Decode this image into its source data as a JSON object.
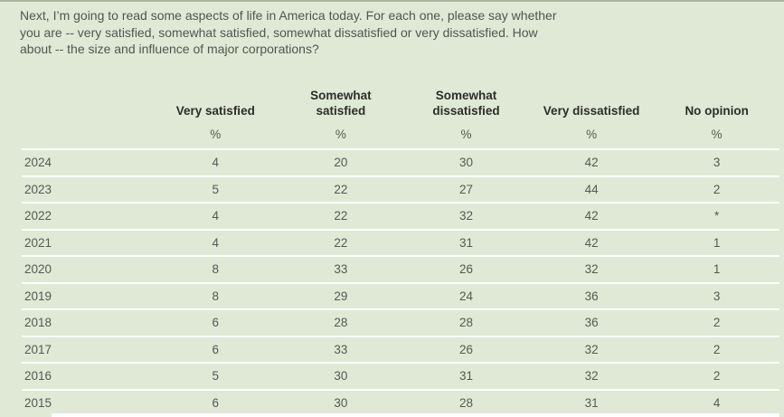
{
  "page": {
    "background_color": "#dfe9d6",
    "separator_color": "#ffffff",
    "top_edge_color": "#aab49e"
  },
  "question": {
    "line1": "Next, I’m going to read some aspects of life in America today. For each one, please say whether",
    "line2": "you are -- very satisfied, somewhat satisfied, somewhat dissatisfied or very dissatisfied. How",
    "line3": "about -- the size and influence of major corporations?"
  },
  "table": {
    "columns": [
      {
        "label": "Very satisfied",
        "line1": "",
        "line2": "Very satisfied",
        "unit": "%"
      },
      {
        "label": "Somewhat satisfied",
        "line1": "Somewhat",
        "line2": "satisfied",
        "unit": "%"
      },
      {
        "label": "Somewhat dissatisfied",
        "line1": "Somewhat",
        "line2": "dissatisfied",
        "unit": "%"
      },
      {
        "label": "Very dissatisfied",
        "line1": "",
        "line2": "Very dissatisfied",
        "unit": "%"
      },
      {
        "label": "No opinion",
        "line1": "",
        "line2": "No opinion",
        "unit": "%"
      }
    ],
    "rows": [
      {
        "year": "2024",
        "values": [
          "4",
          "20",
          "30",
          "42",
          "3"
        ]
      },
      {
        "year": "2023",
        "values": [
          "5",
          "22",
          "27",
          "44",
          "2"
        ]
      },
      {
        "year": "2022",
        "values": [
          "4",
          "22",
          "32",
          "42",
          "*"
        ]
      },
      {
        "year": "2021",
        "values": [
          "4",
          "22",
          "31",
          "42",
          "1"
        ]
      },
      {
        "year": "2020",
        "values": [
          "8",
          "33",
          "26",
          "32",
          "1"
        ]
      },
      {
        "year": "2019",
        "values": [
          "8",
          "29",
          "24",
          "36",
          "3"
        ]
      },
      {
        "year": "2018",
        "values": [
          "6",
          "28",
          "28",
          "36",
          "2"
        ]
      },
      {
        "year": "2017",
        "values": [
          "6",
          "33",
          "26",
          "32",
          "2"
        ]
      },
      {
        "year": "2016",
        "values": [
          "5",
          "30",
          "31",
          "32",
          "2"
        ]
      },
      {
        "year": "2015",
        "values": [
          "6",
          "30",
          "28",
          "31",
          "4"
        ]
      }
    ]
  },
  "chart_data": {
    "type": "table",
    "title": "Next, I’m going to read some aspects of life in America today. For each one, please say whether you are -- very satisfied, somewhat satisfied, somewhat dissatisfied or very dissatisfied. How about -- the size and influence of major corporations?",
    "unit": "%",
    "categories": [
      "2024",
      "2023",
      "2022",
      "2021",
      "2020",
      "2019",
      "2018",
      "2017",
      "2016",
      "2015"
    ],
    "series": [
      {
        "name": "Very satisfied",
        "values": [
          4,
          5,
          4,
          4,
          8,
          8,
          6,
          6,
          5,
          6
        ]
      },
      {
        "name": "Somewhat satisfied",
        "values": [
          20,
          22,
          22,
          22,
          33,
          29,
          28,
          33,
          30,
          30
        ]
      },
      {
        "name": "Somewhat dissatisfied",
        "values": [
          30,
          27,
          32,
          31,
          26,
          24,
          28,
          26,
          31,
          28
        ]
      },
      {
        "name": "Very dissatisfied",
        "values": [
          42,
          44,
          42,
          42,
          32,
          36,
          36,
          32,
          32,
          31
        ]
      },
      {
        "name": "No opinion",
        "values": [
          3,
          2,
          "*",
          1,
          1,
          3,
          2,
          2,
          2,
          4
        ]
      }
    ]
  }
}
